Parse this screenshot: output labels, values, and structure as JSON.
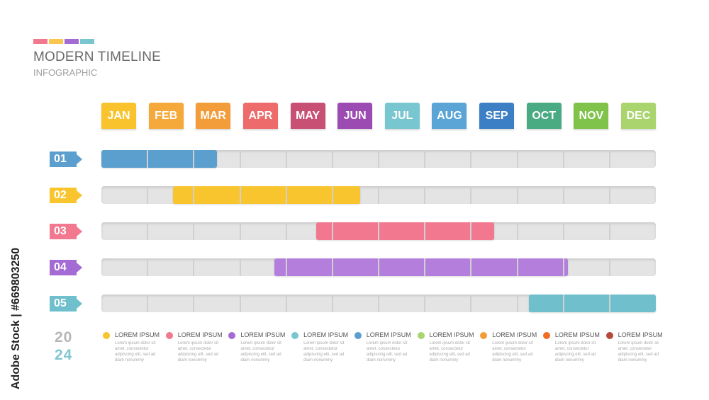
{
  "header": {
    "title": "MODERN TIMELINE",
    "subtitle": "INFOGRAPHIC",
    "strip_colors": [
      "#f2788f",
      "#f9c74f",
      "#a56bd4",
      "#78c6d0"
    ]
  },
  "months": [
    {
      "label": "JAN",
      "color": "#f8c32c"
    },
    {
      "label": "FEB",
      "color": "#f6a93b"
    },
    {
      "label": "MAR",
      "color": "#f39c3a"
    },
    {
      "label": "APR",
      "color": "#ee6b6b"
    },
    {
      "label": "MAY",
      "color": "#c95075"
    },
    {
      "label": "JUN",
      "color": "#9c4bb3"
    },
    {
      "label": "JUL",
      "color": "#78c6d0"
    },
    {
      "label": "AUG",
      "color": "#5ba5d6"
    },
    {
      "label": "SEP",
      "color": "#3d7fc4"
    },
    {
      "label": "OCT",
      "color": "#4aaa82"
    },
    {
      "label": "NOV",
      "color": "#7fc34a"
    },
    {
      "label": "DEC",
      "color": "#a9d46e"
    }
  ],
  "rows": [
    {
      "label": "01",
      "label_color": "#5b9fcf",
      "bar_color": "#5b9fcf",
      "start_month": 0,
      "end_month": 2.5
    },
    {
      "label": "02",
      "label_color": "#f9c52e",
      "bar_color": "#f9c52e",
      "start_month": 1.55,
      "end_month": 5.6
    },
    {
      "label": "03",
      "label_color": "#f2788f",
      "bar_color": "#f2788f",
      "start_month": 4.65,
      "end_month": 8.5
    },
    {
      "label": "04",
      "label_color": "#a56bd4",
      "bar_color": "#b47fdc",
      "start_month": 3.75,
      "end_month": 10.1
    },
    {
      "label": "05",
      "label_color": "#6fc0cc",
      "bar_color": "#6fc0cc",
      "start_month": 9.25,
      "end_month": 12
    }
  ],
  "year": {
    "top": "20",
    "bottom": "24"
  },
  "legend": [
    {
      "title": "LOREM IPSUM",
      "color": "#f8c32c",
      "text": "Lorem ipsum dolor sit amet, consectetur adipiscing elit, sed ad diam nonummy"
    },
    {
      "title": "LOREM IPSUM",
      "color": "#f2788f",
      "text": "Lorem ipsum dolor sit amet, consectetur adipiscing elit, sed ad diam nonummy"
    },
    {
      "title": "LOREM IPSUM",
      "color": "#a56bd4",
      "text": "Lorem ipsum dolor sit amet, consectetur adipiscing elit, sed ad diam nonummy"
    },
    {
      "title": "LOREM IPSUM",
      "color": "#78c6d0",
      "text": "Lorem ipsum dolor sit amet, consectetur adipiscing elit, sed ad diam nonummy"
    },
    {
      "title": "LOREM IPSUM",
      "color": "#5b9fcf",
      "text": "Lorem ipsum dolor sit amet, consectetur adipiscing elit, sed ad diam nonummy"
    },
    {
      "title": "LOREM IPSUM",
      "color": "#a9d46e",
      "text": "Lorem ipsum dolor sit amet, consectetur adipiscing elit, sed ad diam nonummy"
    },
    {
      "title": "LOREM IPSUM",
      "color": "#f39c3a",
      "text": "Lorem ipsum dolor sit amet, consectetur adipiscing elit, sed ad diam nonummy"
    },
    {
      "title": "LOREM IPSUM",
      "color": "#f06d23",
      "text": "Lorem ipsum dolor sit amet, consectetur adipiscing elit, sed ad diam nonummy"
    },
    {
      "title": "LOREM IPSUM",
      "color": "#b54a3a",
      "text": "Lorem ipsum dolor sit amet, consectetur adipiscing elit, sed ad diam nonummy"
    }
  ],
  "watermark": "Adobe Stock | #669803250"
}
